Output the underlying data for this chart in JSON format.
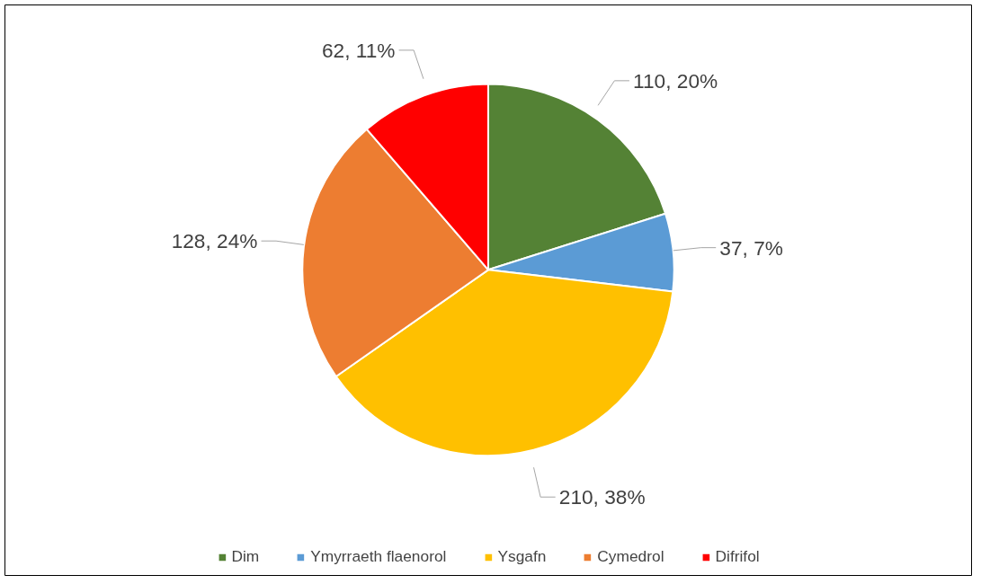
{
  "chart_data": {
    "type": "pie",
    "categories": [
      "Dim",
      "Ymyrraeth flaenorol",
      "Ysgafn",
      "Cymedrol",
      "Difrifol"
    ],
    "values": [
      110,
      37,
      210,
      128,
      62
    ],
    "colors": [
      "#548235",
      "#5b9bd5",
      "#ffc000",
      "#ed7d31",
      "#ff0000"
    ],
    "value_labels": [
      "110, 20%",
      "37, 7%",
      "210, 38%",
      "128, 24%",
      "62, 11%"
    ],
    "legend": "bottom"
  }
}
